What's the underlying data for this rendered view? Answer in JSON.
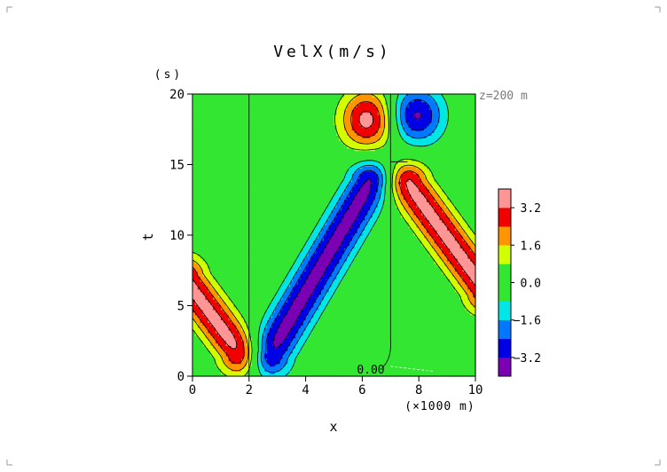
{
  "chart_data": {
    "type": "heatmap",
    "title": "VelX(m/s)",
    "annotation": "z=200 m",
    "xlabel": "x",
    "x_unit": "(×1000 m)",
    "ylabel": "t",
    "y_unit": "(s)",
    "xlim": [
      0,
      10
    ],
    "ylim": [
      0,
      20
    ],
    "x_ticks": [
      0,
      2,
      4,
      6,
      8,
      10
    ],
    "y_ticks": [
      0,
      5,
      10,
      15,
      20
    ],
    "contour_label": "0.00",
    "contour_interval": 0.8,
    "colorbar": {
      "levels": [
        -4.0,
        -3.2,
        -2.4,
        -1.6,
        -0.8,
        0.0,
        0.8,
        1.6,
        2.4,
        3.2,
        4.0
      ],
      "colors": [
        "#7b00b4",
        "#0000e6",
        "#0078ff",
        "#00e6e6",
        "#32e632",
        "#32e632",
        "#d2ff00",
        "#ff9600",
        "#f00000",
        "#ff9696"
      ],
      "tick_labels": [
        "3.2",
        "1.6",
        "0.0",
        "−1.6",
        "−3.2"
      ],
      "tick_values": [
        3.2,
        1.6,
        0.0,
        -1.6,
        -3.2
      ]
    },
    "features": [
      {
        "sign": "negative",
        "peak": -3.5,
        "path": [
          [
            2.7,
            1.5
          ],
          [
            6.3,
            13.8
          ]
        ],
        "width": 0.55
      },
      {
        "sign": "positive",
        "peak": 3.5,
        "path": [
          [
            -0.3,
            7.0
          ],
          [
            1.7,
            1.6
          ]
        ],
        "width": 0.55
      },
      {
        "sign": "positive",
        "peak": 3.5,
        "path": [
          [
            7.6,
            13.7
          ],
          [
            10.4,
            6.0
          ]
        ],
        "width": 0.55
      },
      {
        "sign": "positive",
        "peak": 3.6,
        "center": [
          6.2,
          18.2
        ],
        "radius": [
          0.95,
          2.1
        ]
      },
      {
        "sign": "negative",
        "peak": -3.4,
        "center": [
          7.9,
          18.5
        ],
        "radius": [
          0.95,
          2.0
        ]
      }
    ]
  }
}
